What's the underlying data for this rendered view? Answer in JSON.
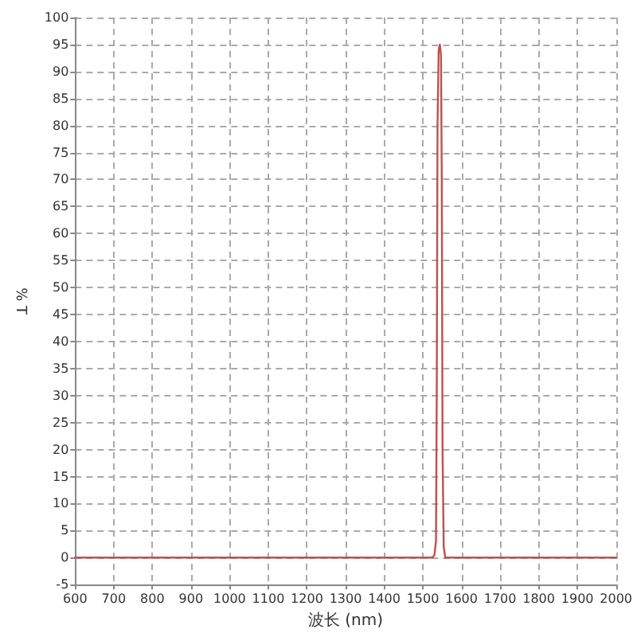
{
  "chart_data": {
    "type": "line",
    "xlabel": "波长 (nm)",
    "ylabel": "% T",
    "x": [
      600,
      1525,
      1530,
      1534,
      1536,
      1538,
      1541,
      1544,
      1547,
      1549,
      1551,
      1554,
      1558,
      2000
    ],
    "series": [
      {
        "color": "#c0504d",
        "values": [
          0,
          0,
          0.5,
          3,
          30,
          80,
          94,
          95,
          93,
          70,
          20,
          2,
          0,
          0
        ]
      }
    ],
    "xlim": [
      600,
      2000
    ],
    "xticks": [
      600,
      700,
      800,
      900,
      1000,
      1100,
      1200,
      1300,
      1400,
      1500,
      1600,
      1700,
      1800,
      1900,
      2000
    ],
    "ylim": [
      -5,
      100
    ],
    "yticks": [
      -5,
      0,
      5,
      10,
      15,
      20,
      25,
      30,
      35,
      40,
      45,
      50,
      55,
      60,
      65,
      70,
      75,
      80,
      85,
      90,
      95,
      100
    ],
    "grid": true,
    "marker": "none",
    "line_style": "solid"
  }
}
